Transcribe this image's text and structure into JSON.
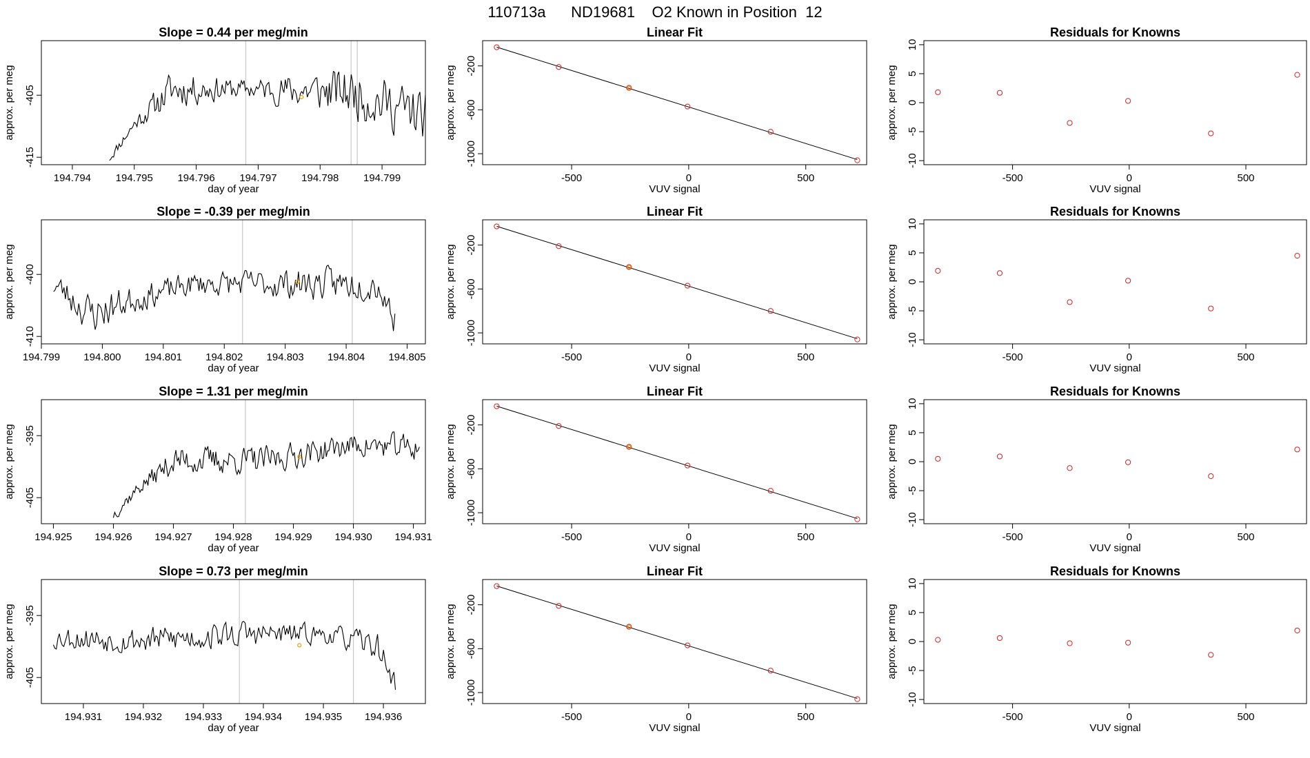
{
  "figure": {
    "title": "110713a      ND19681    O2 Known in Position  12",
    "colors": {
      "line": "#000000",
      "point": "#d02020",
      "highlight": "#e8a000",
      "vline": "#c8c8c8"
    }
  },
  "chart_data": [
    {
      "type": "line",
      "row": 0,
      "title": "Slope =  0.44  per meg/min",
      "xlabel": "day of year",
      "ylabel": "approx. per meg",
      "xlim": [
        194.7935,
        194.7997
      ],
      "ylim": [
        -416.2,
        -396.2
      ],
      "xticks": [
        "194.794",
        "194.795",
        "194.796",
        "194.797",
        "194.798",
        "194.799"
      ],
      "xtick_values": [
        194.794,
        194.795,
        194.796,
        194.797,
        194.798,
        194.799
      ],
      "yticks": [
        "-415",
        "-405"
      ],
      "ytick_values": [
        -415,
        -405
      ],
      "vlines": [
        194.7968,
        194.7985,
        194.7986
      ],
      "highlight_point": {
        "x": 194.7977,
        "y": -405.3
      },
      "seed": 11,
      "series_start": 194.7946,
      "series_end": 194.7997,
      "series_ranges": [
        {
          "x": 194.7946,
          "lo": -416,
          "hi": -414
        },
        {
          "x": 194.795,
          "lo": -411,
          "hi": -408
        },
        {
          "x": 194.7956,
          "lo": -408,
          "hi": -400
        },
        {
          "x": 194.7968,
          "lo": -406,
          "hi": -402
        },
        {
          "x": 194.7985,
          "lo": -410,
          "hi": -399
        },
        {
          "x": 194.7997,
          "lo": -414,
          "hi": -403
        }
      ]
    },
    {
      "type": "scatter",
      "row": 0,
      "title": "Linear Fit",
      "xlabel": "VUV signal",
      "ylabel": "approx. per meg",
      "xlim": [
        -880,
        760
      ],
      "ylim": [
        -1100,
        30
      ],
      "xticks": [
        "-500",
        "0",
        "500"
      ],
      "xtick_values": [
        -500,
        0,
        500
      ],
      "yticks": [
        "-1000",
        "-600",
        "-200"
      ],
      "ytick_values": [
        -1000,
        -600,
        -200
      ],
      "x": [
        -820,
        -555,
        -255,
        -5,
        350,
        720
      ],
      "y": [
        -30,
        -210,
        -400,
        -570,
        -800,
        -1060
      ],
      "highlight_index": 2
    },
    {
      "type": "scatter",
      "row": 0,
      "title": "Residuals for Knowns",
      "xlabel": "VUV signal",
      "ylabel": "approx. per meg",
      "xlim": [
        -880,
        760
      ],
      "ylim": [
        -10.7,
        10.7
      ],
      "xticks": [
        "-500",
        "0",
        "500"
      ],
      "xtick_values": [
        -500,
        0,
        500
      ],
      "yticks": [
        "-10",
        "-5",
        "0",
        "5",
        "10"
      ],
      "ytick_values": [
        -10,
        -5,
        0,
        5,
        10
      ],
      "x": [
        -820,
        -555,
        -255,
        -5,
        350,
        720
      ],
      "y": [
        1.8,
        1.7,
        -3.5,
        0.3,
        -5.3,
        4.8
      ]
    },
    {
      "type": "line",
      "row": 1,
      "title": "Slope =  -0.39  per meg/min",
      "xlabel": "day of year",
      "ylabel": "approx. per meg",
      "xlim": [
        194.799,
        194.8053
      ],
      "ylim": [
        -411.2,
        -391.2
      ],
      "xticks": [
        "194.799",
        "194.800",
        "194.801",
        "194.802",
        "194.803",
        "194.804",
        "194.805"
      ],
      "xtick_values": [
        194.799,
        194.8,
        194.801,
        194.802,
        194.803,
        194.804,
        194.805
      ],
      "yticks": [
        "-410",
        "-400"
      ],
      "ytick_values": [
        -410,
        -400
      ],
      "vlines": [
        194.8023,
        194.8041
      ],
      "highlight_point": {
        "x": 194.8032,
        "y": -401.2
      },
      "seed": 23,
      "series_start": 194.7992,
      "series_end": 194.8048,
      "series_ranges": [
        {
          "x": 194.7992,
          "lo": -404,
          "hi": -399
        },
        {
          "x": 194.7998,
          "lo": -411,
          "hi": -402
        },
        {
          "x": 194.8005,
          "lo": -407,
          "hi": -401
        },
        {
          "x": 194.8015,
          "lo": -404,
          "hi": -399
        },
        {
          "x": 194.8035,
          "lo": -405,
          "hi": -398
        },
        {
          "x": 194.8045,
          "lo": -405,
          "hi": -398
        },
        {
          "x": 194.8048,
          "lo": -411,
          "hi": -404
        }
      ]
    },
    {
      "type": "scatter",
      "row": 1,
      "title": "Linear Fit",
      "xlabel": "VUV signal",
      "ylabel": "approx. per meg",
      "xlim": [
        -880,
        760
      ],
      "ylim": [
        -1100,
        30
      ],
      "xticks": [
        "-500",
        "0",
        "500"
      ],
      "xtick_values": [
        -500,
        0,
        500
      ],
      "yticks": [
        "-1000",
        "-600",
        "-200"
      ],
      "ytick_values": [
        -1000,
        -600,
        -200
      ],
      "x": [
        -820,
        -555,
        -255,
        -5,
        350,
        720
      ],
      "y": [
        -30,
        -210,
        -400,
        -570,
        -800,
        -1060
      ],
      "highlight_index": 2
    },
    {
      "type": "scatter",
      "row": 1,
      "title": "Residuals for Knowns",
      "xlabel": "VUV signal",
      "ylabel": "approx. per meg",
      "xlim": [
        -880,
        760
      ],
      "ylim": [
        -10.7,
        10.7
      ],
      "xticks": [
        "-500",
        "0",
        "500"
      ],
      "xtick_values": [
        -500,
        0,
        500
      ],
      "yticks": [
        "-10",
        "-5",
        "0",
        "5",
        "10"
      ],
      "ytick_values": [
        -10,
        -5,
        0,
        5,
        10
      ],
      "x": [
        -820,
        -555,
        -255,
        -5,
        350,
        720
      ],
      "y": [
        1.9,
        1.5,
        -3.5,
        0.2,
        -4.6,
        4.5
      ]
    },
    {
      "type": "line",
      "row": 2,
      "title": "Slope =  1.31  per meg/min",
      "xlabel": "day of year",
      "ylabel": "approx. per meg",
      "xlim": [
        194.9248,
        194.9312
      ],
      "ylim": [
        -409.2,
        -389.2
      ],
      "xticks": [
        "194.925",
        "194.926",
        "194.927",
        "194.928",
        "194.929",
        "194.930",
        "194.931"
      ],
      "xtick_values": [
        194.925,
        194.926,
        194.927,
        194.928,
        194.929,
        194.93,
        194.931
      ],
      "yticks": [
        "-405",
        "-395"
      ],
      "ytick_values": [
        -405,
        -395
      ],
      "vlines": [
        194.9282,
        194.93
      ],
      "highlight_point": {
        "x": 194.9291,
        "y": -398.4
      },
      "seed": 37,
      "series_start": 194.926,
      "series_end": 194.9311,
      "series_ranges": [
        {
          "x": 194.926,
          "lo": -409,
          "hi": -406
        },
        {
          "x": 194.9264,
          "lo": -405,
          "hi": -402
        },
        {
          "x": 194.927,
          "lo": -402,
          "hi": -396
        },
        {
          "x": 194.9285,
          "lo": -402,
          "hi": -396
        },
        {
          "x": 194.93,
          "lo": -399,
          "hi": -394
        },
        {
          "x": 194.9311,
          "lo": -400,
          "hi": -394
        }
      ]
    },
    {
      "type": "scatter",
      "row": 2,
      "title": "Linear Fit",
      "xlabel": "VUV signal",
      "ylabel": "approx. per meg",
      "xlim": [
        -880,
        760
      ],
      "ylim": [
        -1100,
        30
      ],
      "xticks": [
        "-500",
        "0",
        "500"
      ],
      "xtick_values": [
        -500,
        0,
        500
      ],
      "yticks": [
        "-1000",
        "-600",
        "-200"
      ],
      "ytick_values": [
        -1000,
        -600,
        -200
      ],
      "x": [
        -820,
        -555,
        -255,
        -5,
        350,
        720
      ],
      "y": [
        -30,
        -210,
        -400,
        -570,
        -800,
        -1060
      ],
      "highlight_index": 2
    },
    {
      "type": "scatter",
      "row": 2,
      "title": "Residuals for Knowns",
      "xlabel": "VUV signal",
      "ylabel": "approx. per meg",
      "xlim": [
        -880,
        760
      ],
      "ylim": [
        -10.7,
        10.7
      ],
      "xticks": [
        "-500",
        "0",
        "500"
      ],
      "xtick_values": [
        -500,
        0,
        500
      ],
      "yticks": [
        "-10",
        "-5",
        "0",
        "5",
        "10"
      ],
      "ytick_values": [
        -10,
        -5,
        0,
        5,
        10
      ],
      "x": [
        -820,
        -555,
        -255,
        -5,
        350,
        720
      ],
      "y": [
        0.5,
        0.9,
        -1.1,
        -0.1,
        -2.5,
        2.1
      ]
    },
    {
      "type": "line",
      "row": 3,
      "title": "Slope =  0.73  per meg/min",
      "xlabel": "day of year",
      "ylabel": "approx. per meg",
      "xlim": [
        194.9303,
        194.9367
      ],
      "ylim": [
        -409.2,
        -389.2
      ],
      "xticks": [
        "194.931",
        "194.932",
        "194.933",
        "194.934",
        "194.935",
        "194.936"
      ],
      "xtick_values": [
        194.931,
        194.932,
        194.933,
        194.934,
        194.935,
        194.936
      ],
      "yticks": [
        "-405",
        "-395"
      ],
      "ytick_values": [
        -405,
        -395
      ],
      "vlines": [
        194.9336,
        194.9355
      ],
      "highlight_point": {
        "x": 194.9346,
        "y": -399.8
      },
      "seed": 53,
      "series_start": 194.9305,
      "series_end": 194.9362,
      "series_ranges": [
        {
          "x": 194.9305,
          "lo": -401,
          "hi": -396
        },
        {
          "x": 194.932,
          "lo": -402,
          "hi": -396
        },
        {
          "x": 194.9336,
          "lo": -401,
          "hi": -395
        },
        {
          "x": 194.935,
          "lo": -400,
          "hi": -396
        },
        {
          "x": 194.9359,
          "lo": -403,
          "hi": -397
        },
        {
          "x": 194.9362,
          "lo": -409,
          "hi": -404
        }
      ]
    },
    {
      "type": "scatter",
      "row": 3,
      "title": "Linear Fit",
      "xlabel": "VUV signal",
      "ylabel": "approx. per meg",
      "xlim": [
        -880,
        760
      ],
      "ylim": [
        -1100,
        30
      ],
      "xticks": [
        "-500",
        "0",
        "500"
      ],
      "xtick_values": [
        -500,
        0,
        500
      ],
      "yticks": [
        "-1000",
        "-600",
        "-200"
      ],
      "ytick_values": [
        -1000,
        -600,
        -200
      ],
      "x": [
        -820,
        -555,
        -255,
        -5,
        350,
        720
      ],
      "y": [
        -30,
        -210,
        -400,
        -570,
        -800,
        -1060
      ],
      "highlight_index": 2
    },
    {
      "type": "scatter",
      "row": 3,
      "title": "Residuals for Knowns",
      "xlabel": "VUV signal",
      "ylabel": "approx. per meg",
      "xlim": [
        -880,
        760
      ],
      "ylim": [
        -10.7,
        10.7
      ],
      "xticks": [
        "-500",
        "0",
        "500"
      ],
      "xtick_values": [
        -500,
        0,
        500
      ],
      "yticks": [
        "-10",
        "-5",
        "0",
        "5",
        "10"
      ],
      "ytick_values": [
        -10,
        -5,
        0,
        5,
        10
      ],
      "x": [
        -820,
        -555,
        -255,
        -5,
        350,
        720
      ],
      "y": [
        0.3,
        0.6,
        -0.3,
        -0.2,
        -2.3,
        1.9
      ]
    }
  ]
}
